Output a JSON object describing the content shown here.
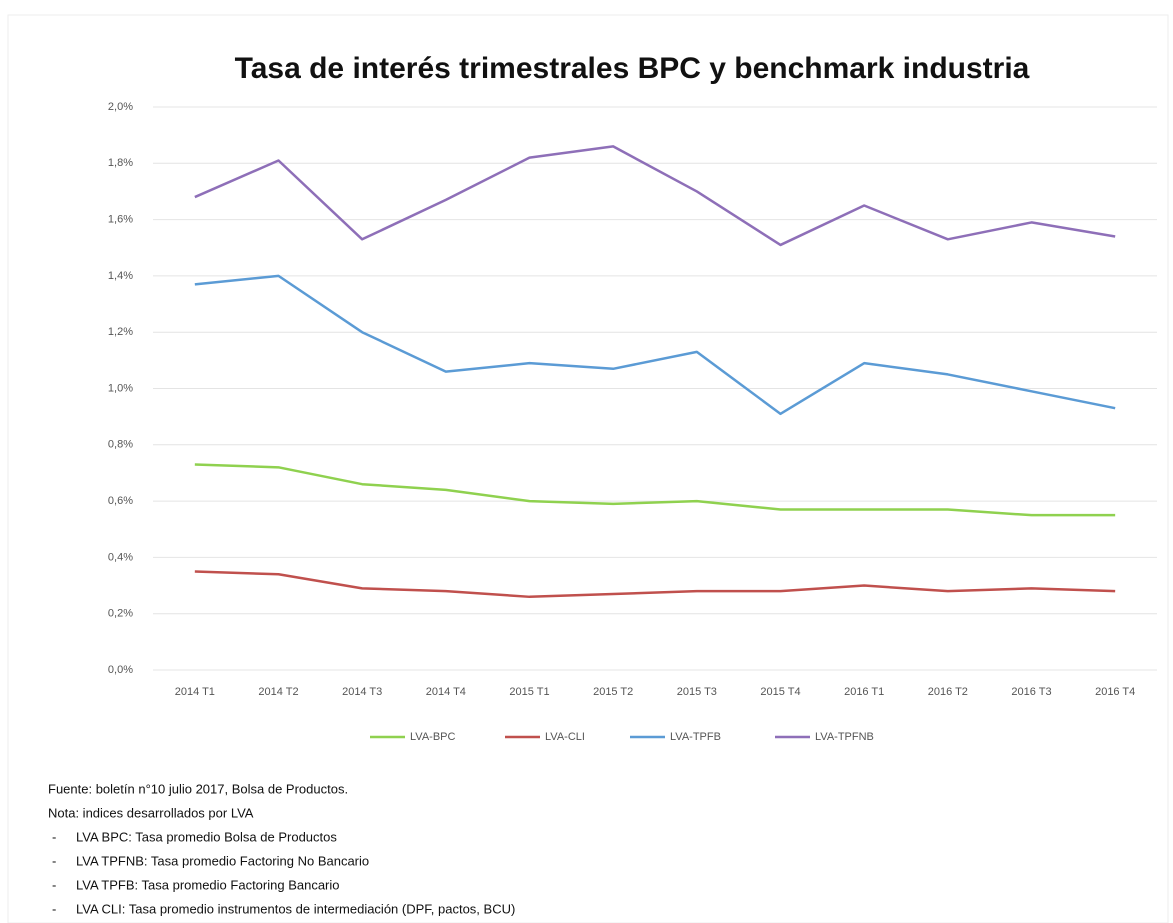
{
  "chart_data": {
    "type": "line",
    "title": "Tasa de interés trimestrales BPC y benchmark industria",
    "categories": [
      "2014 T1",
      "2014 T2",
      "2014 T3",
      "2014 T4",
      "2015 T1",
      "2015 T2",
      "2015 T3",
      "2015 T4",
      "2016 T1",
      "2016 T2",
      "2016 T3",
      "2016 T4"
    ],
    "series": [
      {
        "name": "LVA-BPC",
        "color": "#8fd14f",
        "values": [
          0.73,
          0.72,
          0.66,
          0.64,
          0.6,
          0.59,
          0.6,
          0.57,
          0.57,
          0.57,
          0.55,
          0.55
        ]
      },
      {
        "name": "LVA-CLI",
        "color": "#c0504d",
        "values": [
          0.35,
          0.34,
          0.29,
          0.28,
          0.26,
          0.27,
          0.28,
          0.28,
          0.3,
          0.28,
          0.29,
          0.28
        ]
      },
      {
        "name": "LVA-TPFB",
        "color": "#5b9bd5",
        "values": [
          1.37,
          1.4,
          1.2,
          1.06,
          1.09,
          1.07,
          1.13,
          0.91,
          1.09,
          1.05,
          0.99,
          0.93
        ]
      },
      {
        "name": "LVA-TPFNB",
        "color": "#8e6fb8",
        "values": [
          1.68,
          1.81,
          1.53,
          1.67,
          1.82,
          1.86,
          1.7,
          1.51,
          1.65,
          1.53,
          1.59,
          1.54
        ]
      }
    ],
    "ylim": [
      0,
      2
    ],
    "yticks": [
      {
        "value": 0,
        "label": "0,0%"
      },
      {
        "value": 0.2,
        "label": "0,2%"
      },
      {
        "value": 0.4,
        "label": "0,4%"
      },
      {
        "value": 0.6,
        "label": "0,6%"
      },
      {
        "value": 0.8,
        "label": "0,8%"
      },
      {
        "value": 1.0,
        "label": "1,0%"
      },
      {
        "value": 1.2,
        "label": "1,2%"
      },
      {
        "value": 1.4,
        "label": "1,4%"
      },
      {
        "value": 1.6,
        "label": "1,6%"
      },
      {
        "value": 1.8,
        "label": "1,8%"
      },
      {
        "value": 2.0,
        "label": "2,0%"
      }
    ],
    "grid": true,
    "legend": "bottom",
    "source": "Fuente: boletín n°10 julio 2017, Bolsa de Productos.",
    "note": "Nota: indices desarrollados por LVA",
    "definitions": [
      "LVA BPC: Tasa promedio Bolsa de Productos",
      "LVA TPFNB: Tasa promedio Factoring No Bancario",
      "LVA TPFB: Tasa promedio Factoring Bancario",
      "LVA CLI: Tasa promedio instrumentos de intermediación (DPF, pactos, BCU)"
    ]
  }
}
